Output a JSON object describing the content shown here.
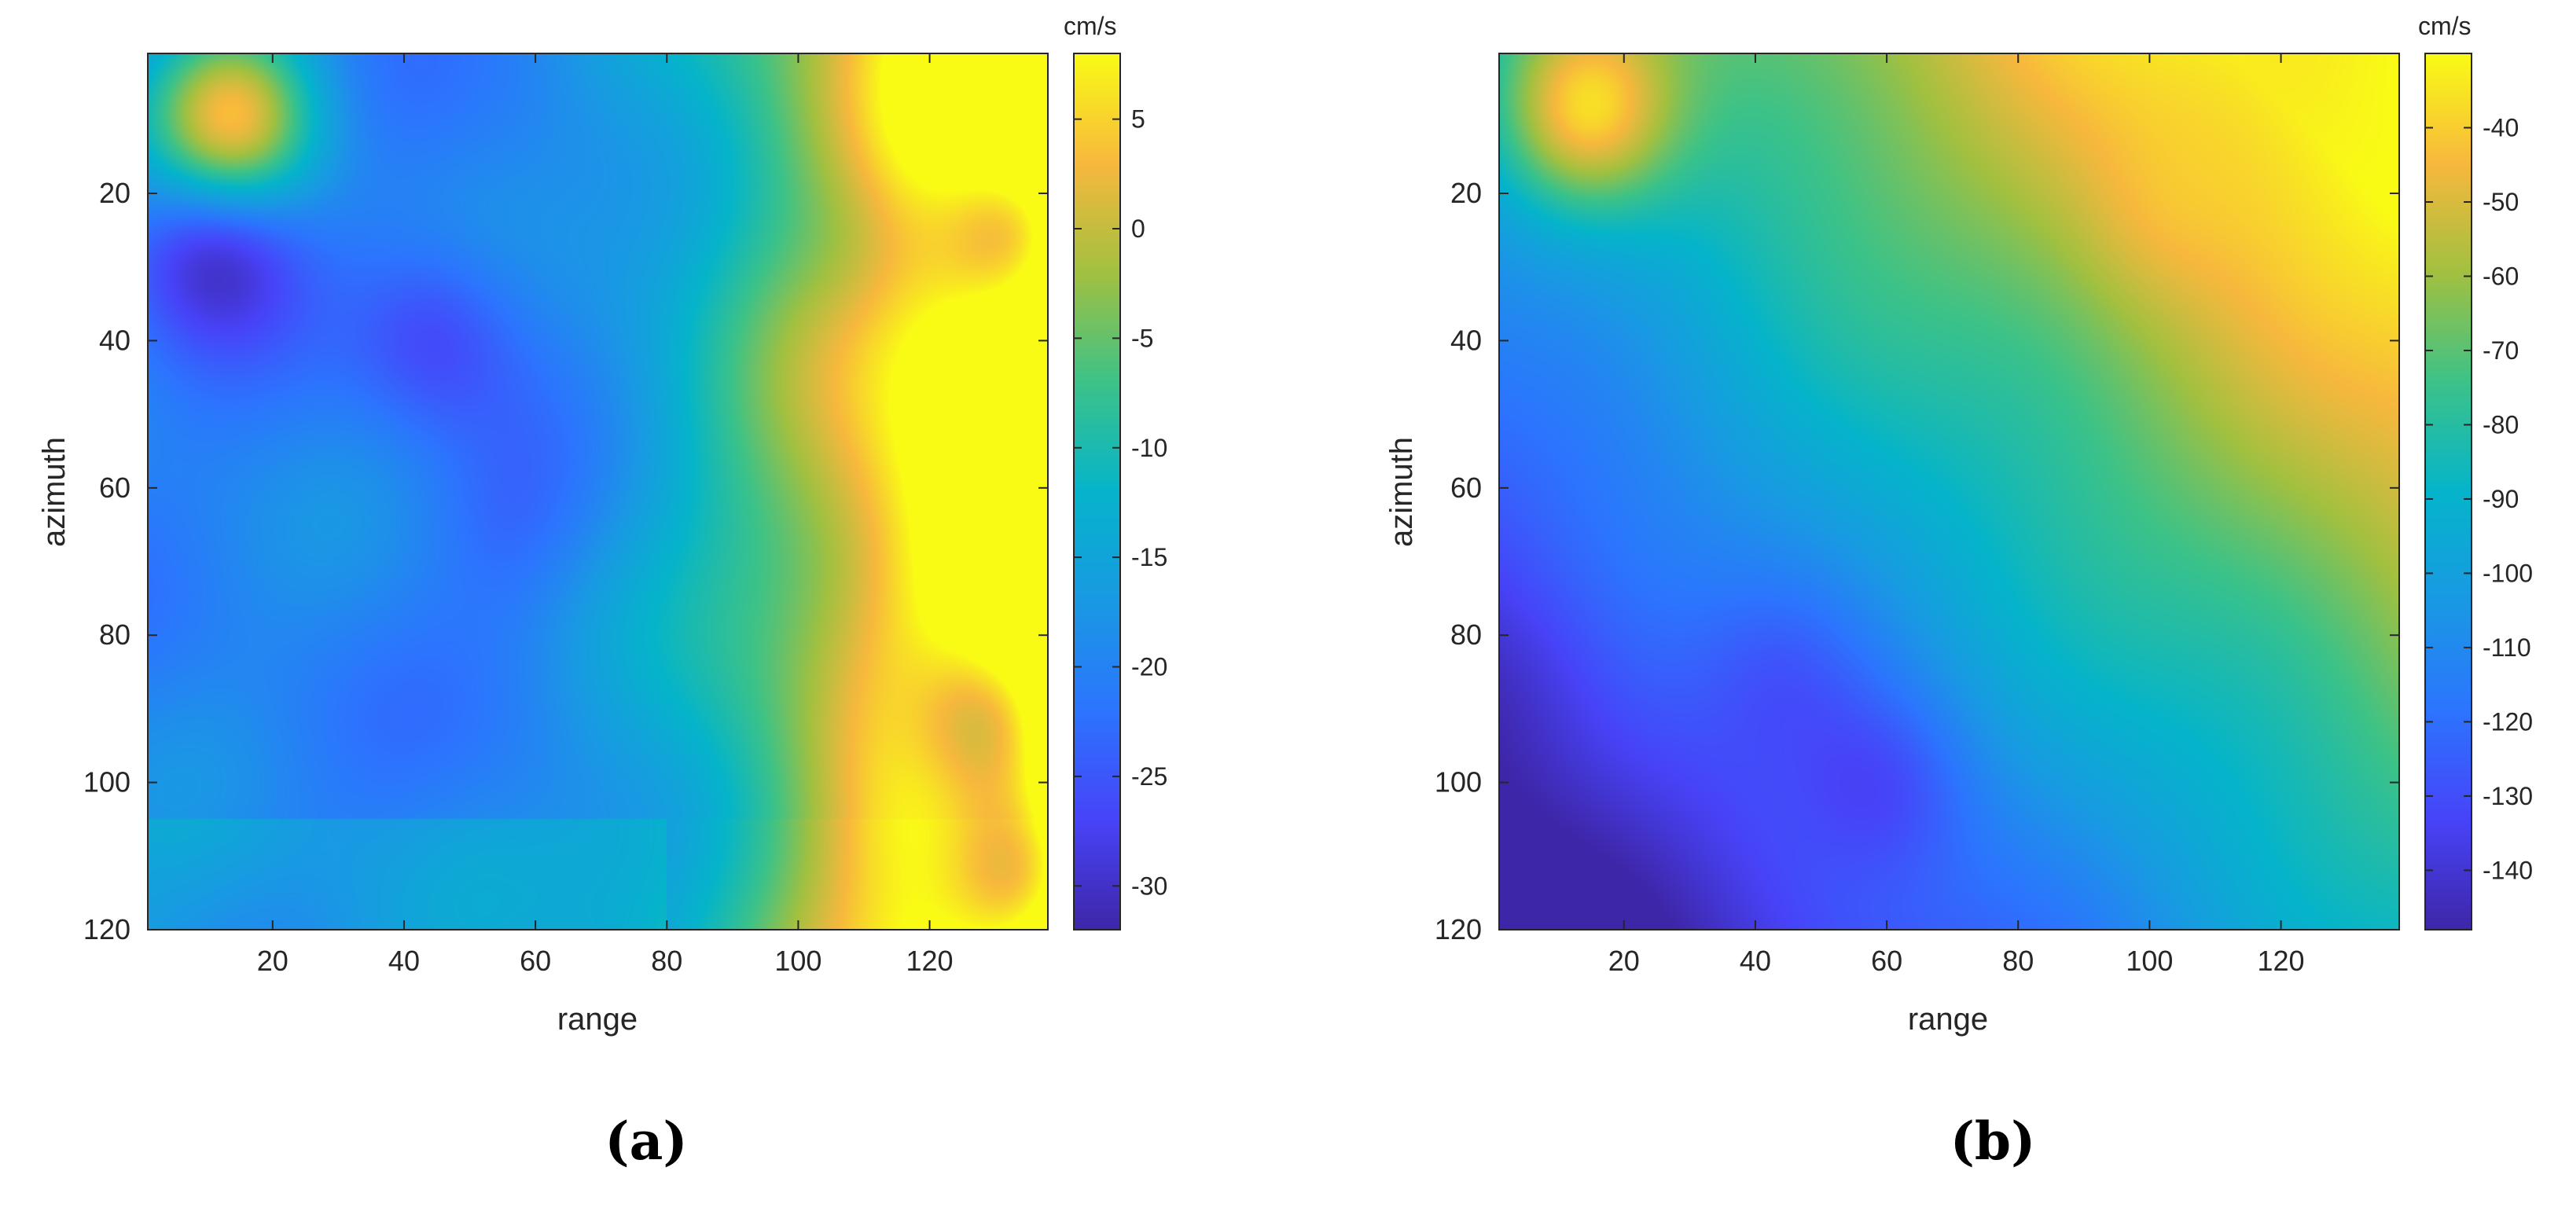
{
  "chart_data": [
    {
      "type": "heatmap",
      "caption": "(a)",
      "xlabel": "range",
      "ylabel": "azimuth",
      "xlim": [
        1,
        138
      ],
      "ylim": [
        1,
        120
      ],
      "xticks": [
        20,
        40,
        60,
        80,
        100,
        120
      ],
      "yticks": [
        20,
        40,
        60,
        80,
        100,
        120
      ],
      "y_direction": "reverse",
      "colorbar": {
        "unit": "cm/s",
        "range": [
          -32,
          8
        ],
        "ticks": [
          5,
          0,
          -5,
          -10,
          -15,
          -20,
          -25,
          -30
        ],
        "colormap": "parula"
      },
      "features": [
        {
          "x": 14,
          "y": 10,
          "value": 5,
          "description": "local maximum (yellow spot)"
        },
        {
          "x": 11,
          "y": 27,
          "value": -31,
          "description": "local minimum (dark blue)"
        },
        {
          "x": 45,
          "y": 39,
          "value": -26,
          "description": "low velocity"
        },
        {
          "x": 55,
          "y": 66,
          "value": -23,
          "description": "low velocity"
        },
        {
          "x": 110,
          "y": 27,
          "value": 1,
          "description": "orange patch"
        },
        {
          "x": 130,
          "y": 92,
          "value": 4,
          "description": "high velocity near right edge"
        },
        {
          "x": 135,
          "y": 112,
          "value": 6,
          "description": "high velocity near bottom-right"
        },
        {
          "x": 134,
          "y": 25,
          "value": 6,
          "description": "high velocity near right edge"
        }
      ]
    },
    {
      "type": "heatmap",
      "caption": "(b)",
      "xlabel": "range",
      "ylabel": "azimuth",
      "xlim": [
        1,
        138
      ],
      "ylim": [
        1,
        120
      ],
      "xticks": [
        20,
        40,
        60,
        80,
        100,
        120
      ],
      "yticks": [
        20,
        40,
        60,
        80,
        100,
        120
      ],
      "y_direction": "reverse",
      "colorbar": {
        "unit": "cm/s",
        "range": [
          -148,
          -30
        ],
        "ticks": [
          -40,
          -50,
          -60,
          -70,
          -80,
          -90,
          -100,
          -110,
          -120,
          -130,
          -140
        ],
        "colormap": "parula"
      },
      "features": [
        {
          "x": 14,
          "y": 9,
          "value": -37,
          "description": "local maximum (yellow spot)"
        },
        {
          "x": 130,
          "y": 5,
          "value": -32,
          "description": "high velocity top-right corner"
        },
        {
          "x": 100,
          "y": 25,
          "value": -45,
          "description": "orange region"
        },
        {
          "x": 12,
          "y": 104,
          "value": -145,
          "description": "local minimum (dark blue)"
        },
        {
          "x": 5,
          "y": 85,
          "value": -140,
          "description": "low velocity left edge"
        },
        {
          "x": 60,
          "y": 100,
          "value": -132,
          "description": "low velocity"
        },
        {
          "x": 45,
          "y": 85,
          "value": -128,
          "description": "low velocity"
        }
      ]
    }
  ]
}
